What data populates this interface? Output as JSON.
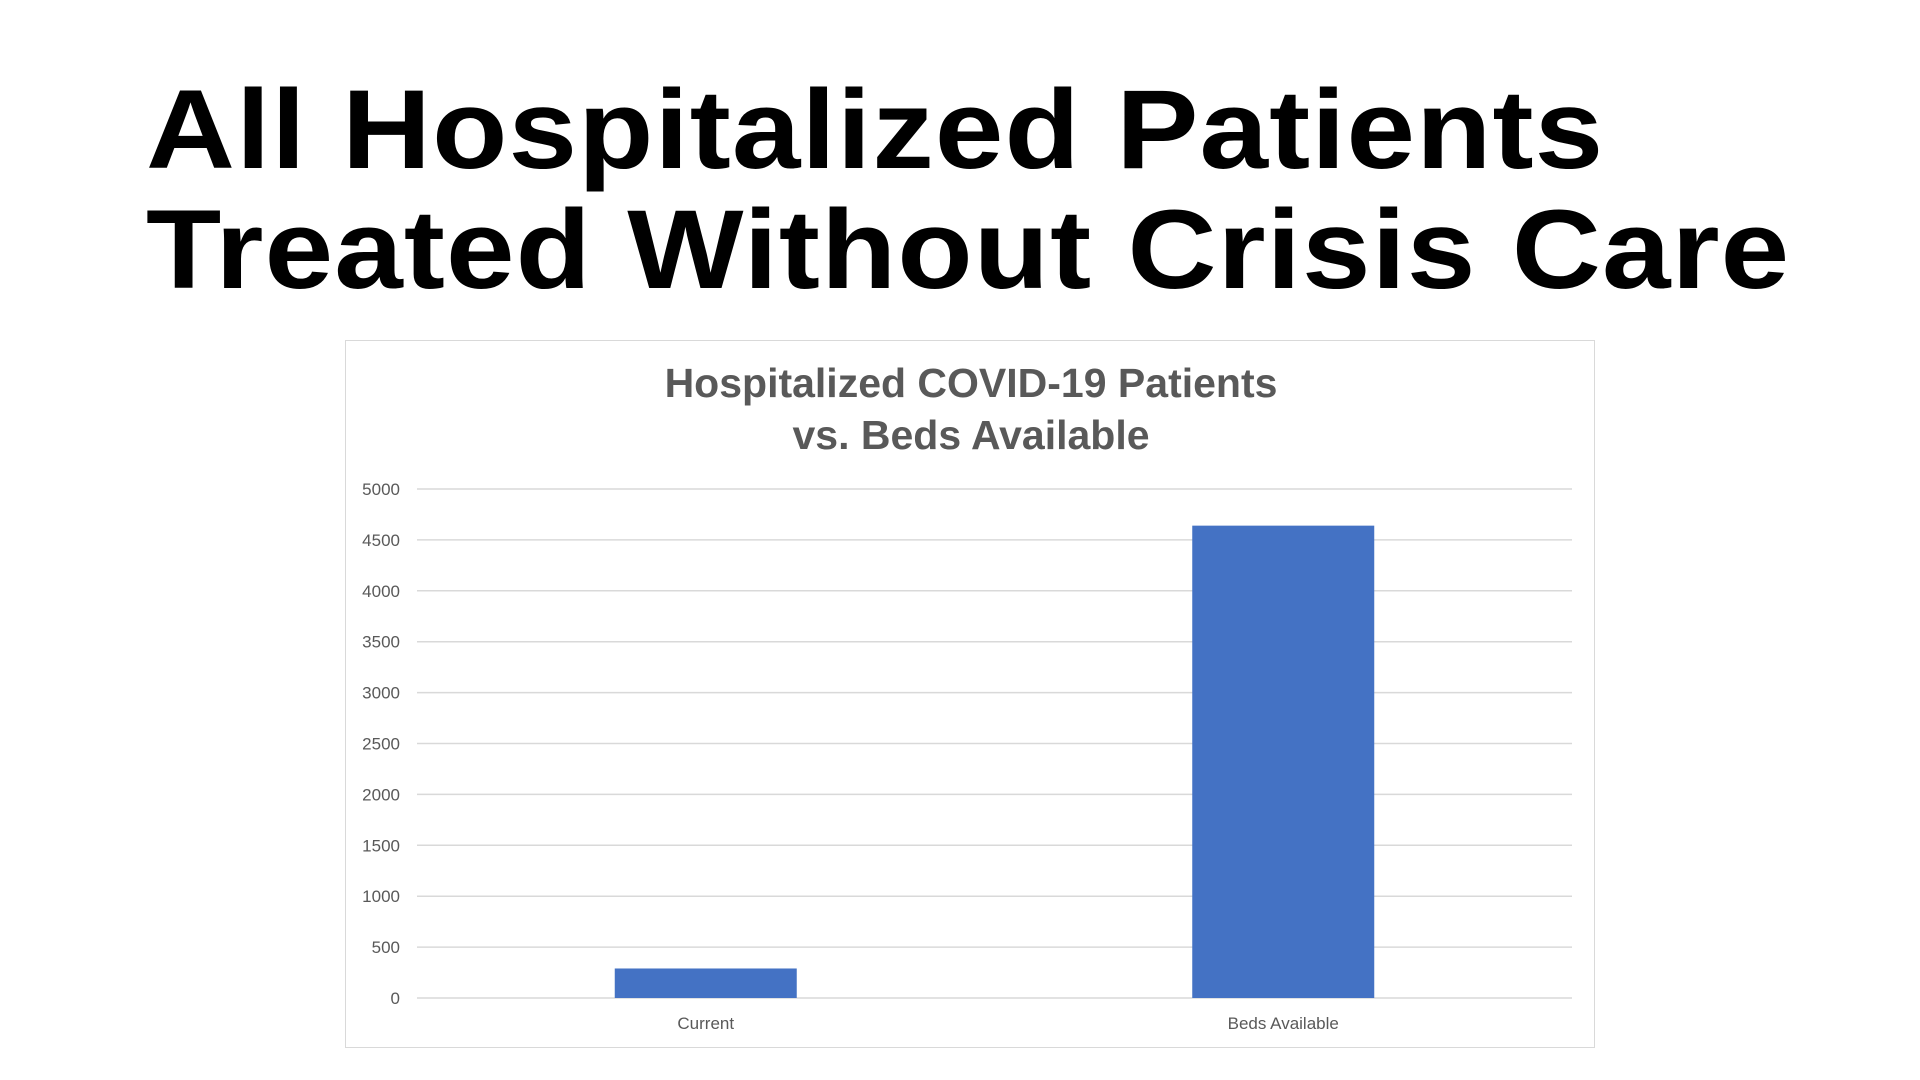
{
  "slide": {
    "title_lines": [
      "All Hospitalized Patients",
      "Treated Without Crisis Care"
    ]
  },
  "chart_data": {
    "type": "bar",
    "title_lines": [
      "Hospitalized COVID-19 Patients",
      "vs. Beds Available"
    ],
    "categories": [
      "Current",
      "Beds Available"
    ],
    "values": [
      290,
      4640
    ],
    "xlabel": "",
    "ylabel": "",
    "ylim": [
      0,
      5000
    ],
    "yticks": [
      0,
      500,
      1000,
      1500,
      2000,
      2500,
      3000,
      3500,
      4000,
      4500,
      5000
    ],
    "grid": true,
    "legend": "none",
    "bar_color": "#4472C4",
    "title_color": "#595959"
  }
}
